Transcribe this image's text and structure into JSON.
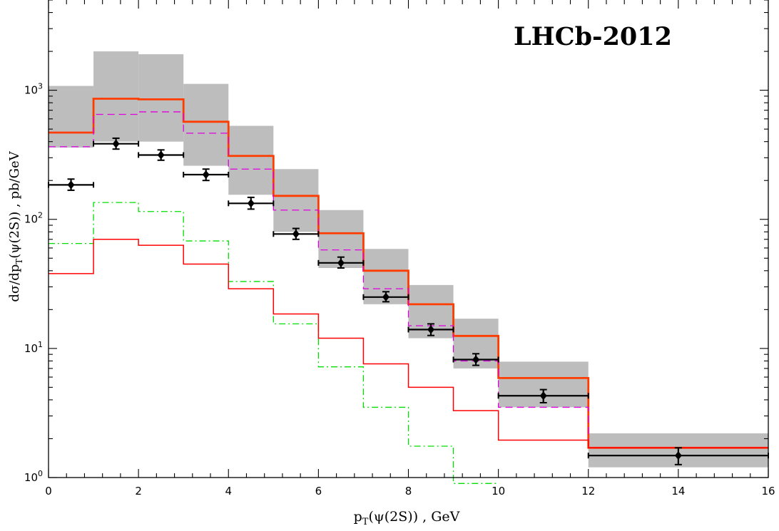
{
  "chart_data": {
    "type": "line",
    "title": "LHCb-2012",
    "xlabel": "p",
    "xlabel_sub": "T",
    "xlabel_rest": "(ψ(2S)) , GeV",
    "ylabel": "dσ/dp",
    "ylabel_sub": "T",
    "ylabel_rest": "(ψ(2S)) , pb/GeV",
    "xlim": [
      0,
      16
    ],
    "ylim": [
      1,
      5000
    ],
    "yscale": "log",
    "x_ticks": [
      {
        "value": 0,
        "label": "0"
      },
      {
        "value": 2,
        "label": "2"
      },
      {
        "value": 4,
        "label": "4"
      },
      {
        "value": 6,
        "label": "6"
      },
      {
        "value": 8,
        "label": "8"
      },
      {
        "value": 10,
        "label": "10"
      },
      {
        "value": 12,
        "label": "12"
      },
      {
        "value": 14,
        "label": "14"
      },
      {
        "value": 16,
        "label": "16"
      }
    ],
    "y_ticks": [
      {
        "value": 1,
        "base": "10",
        "exp": "0"
      },
      {
        "value": 10,
        "base": "10",
        "exp": "1"
      },
      {
        "value": 100,
        "base": "10",
        "exp": "2"
      },
      {
        "value": 1000,
        "base": "10",
        "exp": "3"
      }
    ],
    "bins": [
      [
        0,
        1
      ],
      [
        1,
        2
      ],
      [
        2,
        3
      ],
      [
        3,
        4
      ],
      [
        4,
        5
      ],
      [
        5,
        6
      ],
      [
        6,
        7
      ],
      [
        7,
        8
      ],
      [
        8,
        9
      ],
      [
        9,
        10
      ],
      [
        10,
        12
      ],
      [
        12,
        16
      ]
    ],
    "band": {
      "color": "#bdbdbd",
      "low": [
        360,
        400,
        400,
        260,
        155,
        80,
        42,
        22,
        12,
        7,
        3.5,
        1.2
      ],
      "high": [
        1080,
        2000,
        1900,
        1120,
        530,
        245,
        118,
        59,
        31,
        17,
        7.9,
        2.2
      ]
    },
    "series": [
      {
        "style": "thick-solid",
        "color": "#ff3c00",
        "width": 2.8,
        "dash": "",
        "values": [
          470,
          860,
          850,
          570,
          310,
          152,
          78,
          40,
          22,
          12.5,
          5.9,
          1.7
        ]
      },
      {
        "style": "dashed",
        "color": "#e000e0",
        "width": 1.3,
        "dash": "10,6",
        "values": [
          365,
          650,
          680,
          465,
          245,
          118,
          58,
          29,
          15,
          8.0,
          3.5,
          1.7
        ]
      },
      {
        "style": "dash-dot",
        "color": "#00dd00",
        "width": 1.3,
        "dash": "9,4,2,4",
        "values": [
          65,
          135,
          115,
          68,
          33,
          15.5,
          7.2,
          3.5,
          1.75,
          0.9,
          null,
          null
        ]
      },
      {
        "style": "thin-solid",
        "color": "#ff0000",
        "width": 1.5,
        "dash": "",
        "values": [
          38,
          70,
          63,
          45,
          29,
          18.5,
          12,
          7.6,
          5.0,
          3.3,
          1.95,
          1.7
        ]
      }
    ],
    "points": {
      "color": "#000000",
      "x": [
        0.5,
        1.5,
        2.5,
        3.5,
        4.5,
        5.5,
        6.5,
        7.5,
        8.5,
        9.5,
        11,
        14
      ],
      "xerr": [
        0.5,
        0.5,
        0.5,
        0.5,
        0.5,
        0.5,
        0.5,
        0.5,
        0.5,
        0.5,
        1,
        2
      ],
      "y": [
        185,
        385,
        315,
        222,
        133,
        77,
        46,
        25,
        14,
        8.2,
        4.3,
        1.48
      ],
      "ylo": [
        168,
        350,
        287,
        200,
        120,
        70,
        42,
        23,
        12.6,
        7.4,
        3.8,
        1.26
      ],
      "yhi": [
        205,
        425,
        345,
        245,
        148,
        85,
        51,
        27.5,
        15.5,
        9.1,
        4.8,
        1.7
      ]
    },
    "grid": false
  }
}
